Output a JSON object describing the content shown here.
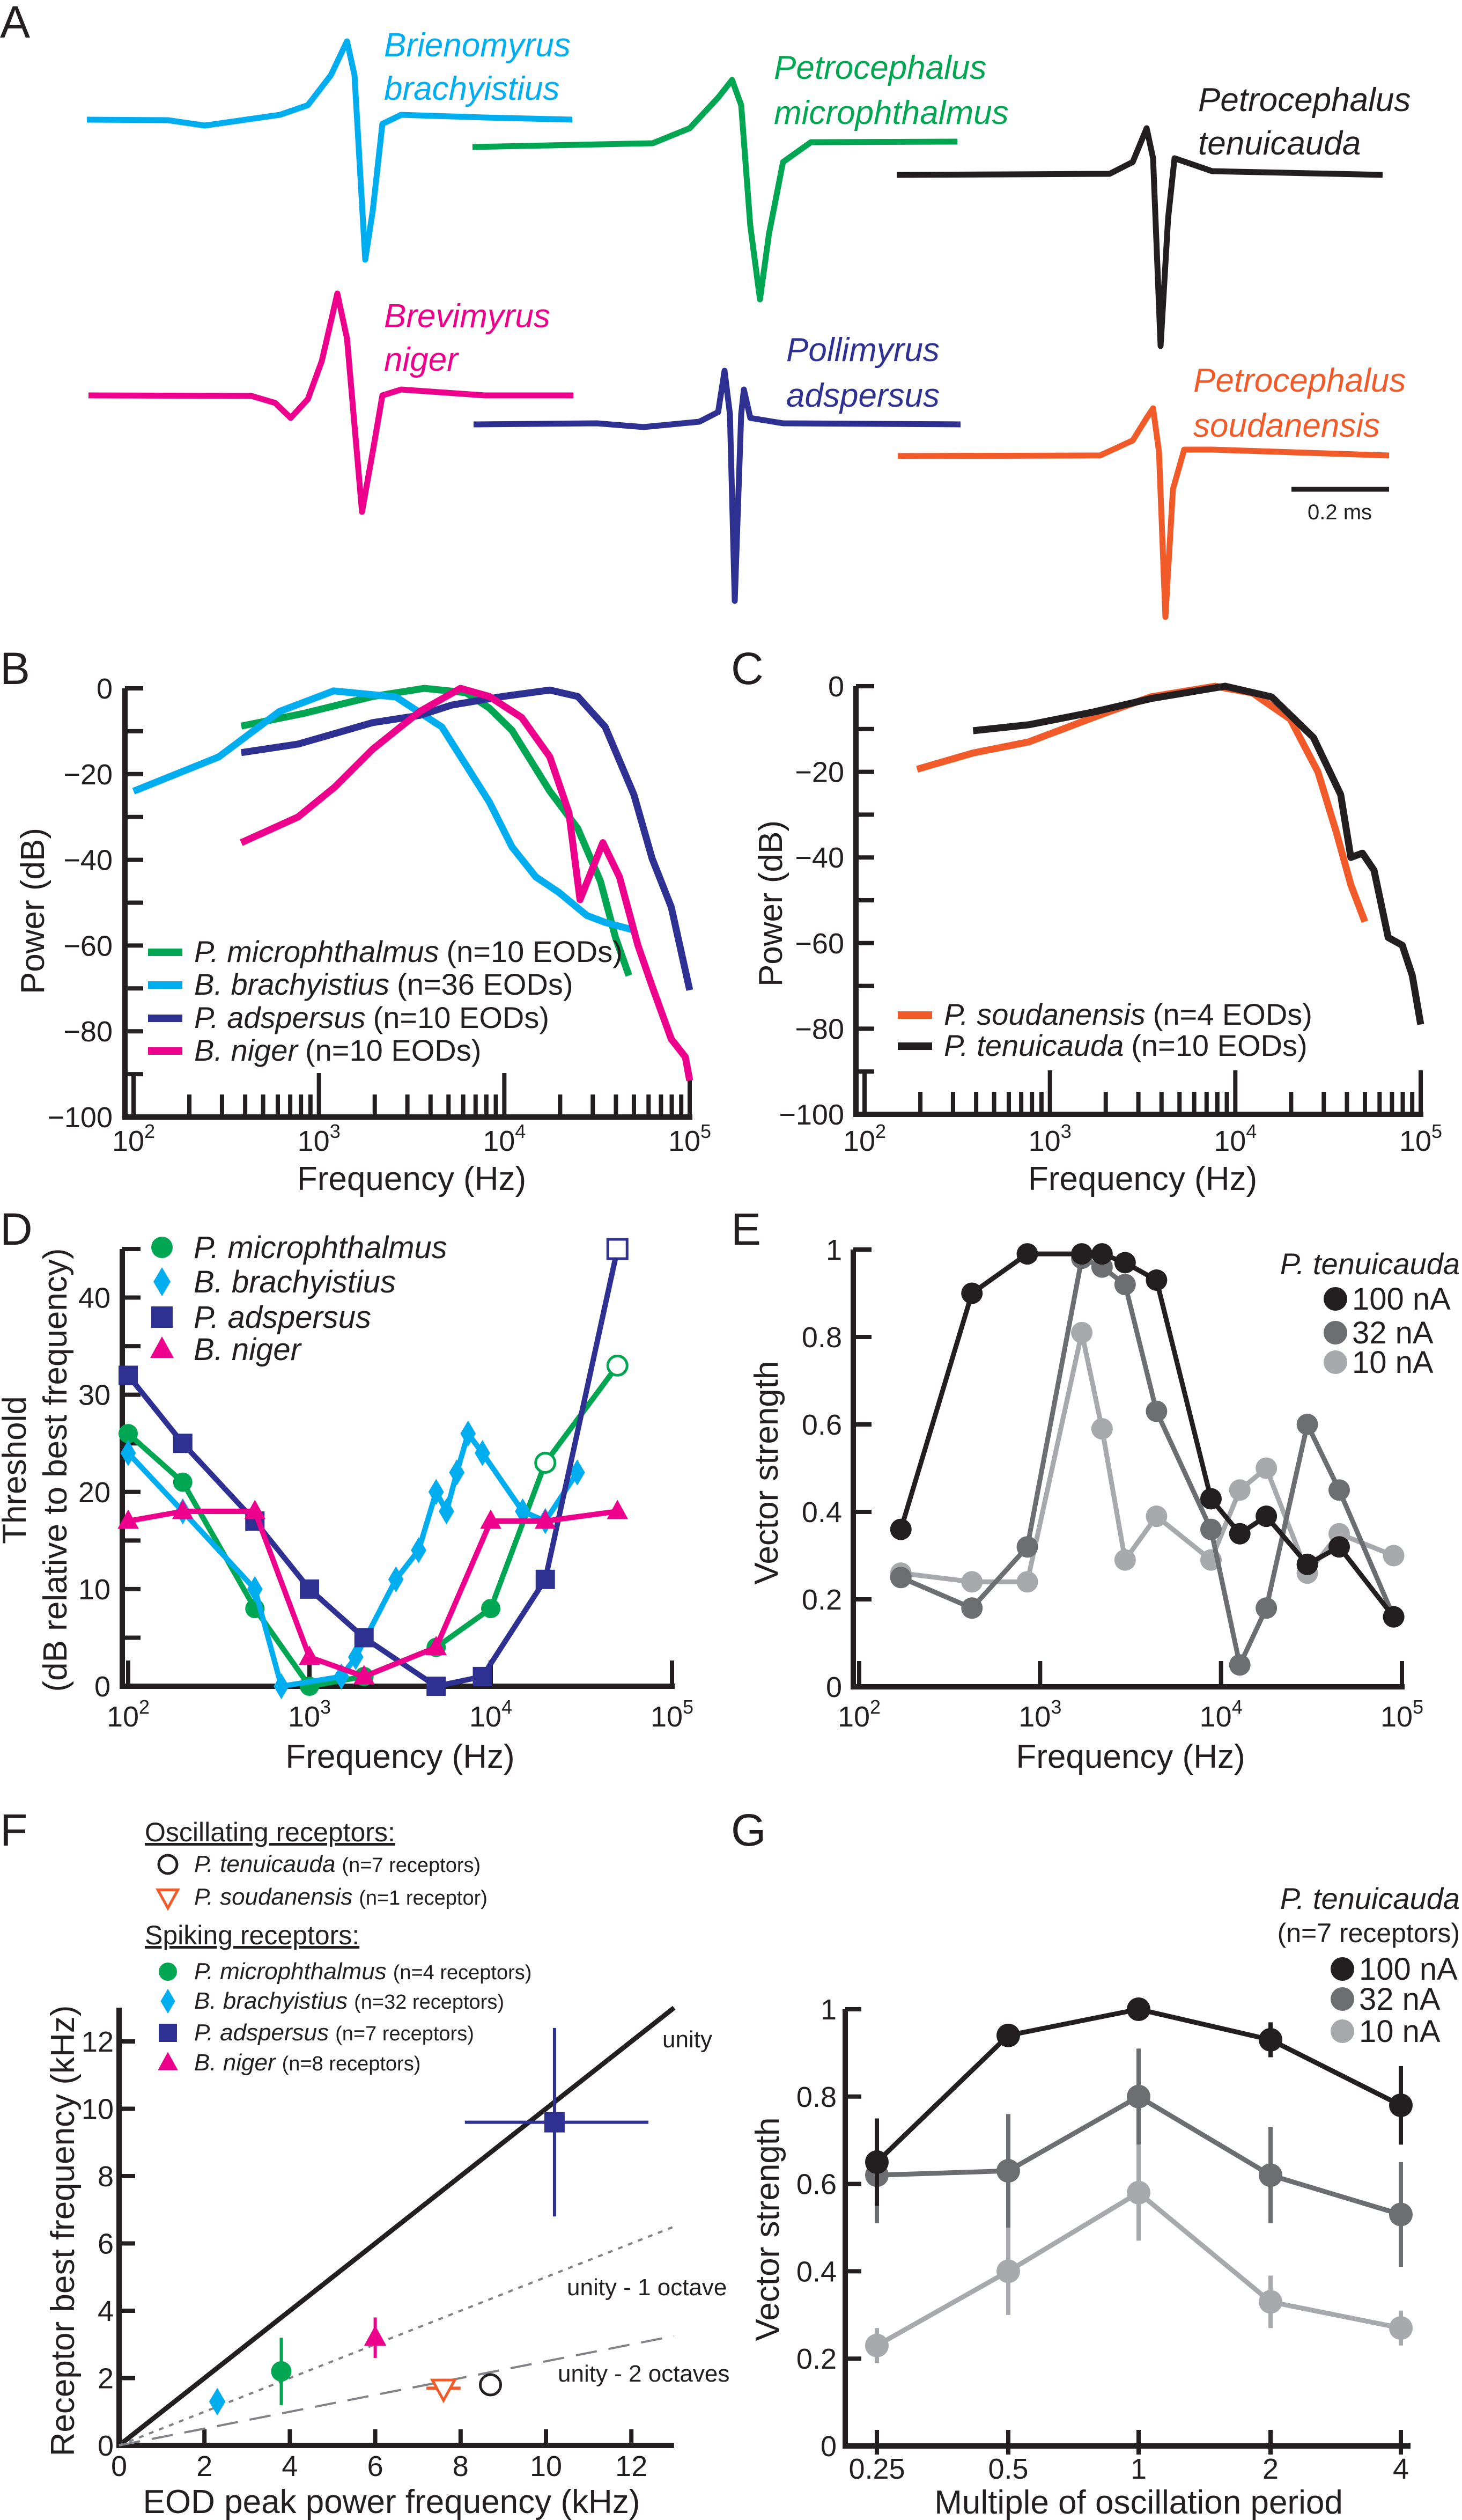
{
  "panel_labels": [
    "A",
    "B",
    "C",
    "D",
    "E",
    "F",
    "G"
  ],
  "panel_a": {
    "waveforms": [
      {
        "genus": "Brienomyrus",
        "species": "brachyistius",
        "color": "#00aeef"
      },
      {
        "genus": "Petrocephalus",
        "species": "microphthalmus",
        "color": "#00a651"
      },
      {
        "genus": "Petrocephalus",
        "species": "tenuicauda",
        "color": "#231f20"
      },
      {
        "genus": "Brevimyrus",
        "species": "niger",
        "color": "#ec008c"
      },
      {
        "genus": "Pollimyrus",
        "species": "adspersus",
        "color": "#2e3192"
      },
      {
        "genus": "Petrocephalus",
        "species": "soudanensis",
        "color": "#f15a29"
      }
    ],
    "scale_bar": "0.2 ms"
  },
  "chart_data": [
    {
      "panel": "B",
      "type": "line",
      "xscale": "log",
      "xlim": [
        100,
        100000
      ],
      "ylim": [
        -100,
        0
      ],
      "xlabel": "Frequency (Hz)",
      "ylabel": "Power (dB)",
      "xtick_labels": [
        {
          "base": "10",
          "exp": "2"
        },
        {
          "base": "10",
          "exp": "3"
        },
        {
          "base": "10",
          "exp": "4"
        },
        {
          "base": "10",
          "exp": "5"
        }
      ],
      "ytick_labels": [
        "0",
        "−20",
        "−40",
        "−60",
        "−80",
        "−100"
      ],
      "legend_position": "bottom-left",
      "series": [
        {
          "name": "P. microphthalmus",
          "note": "(n=10 EODs)",
          "color": "#00a651",
          "x": [
            381,
            817,
            1950,
            3700,
            6200,
            8300,
            11000,
            17600,
            24900,
            33000,
            39700,
            47000
          ],
          "y": [
            -8.8,
            -5.9,
            -1.9,
            0,
            -1,
            -4.6,
            -9.8,
            -24,
            -32.7,
            -45,
            -58,
            -67
          ]
        },
        {
          "name": "B. brachyistius",
          "note": "(n=36 EODs)",
          "color": "#00aeef",
          "x": [
            100,
            288,
            612,
            1200,
            2600,
            4600,
            8300,
            11000,
            14800,
            19700,
            27900,
            35000,
            50000
          ],
          "y": [
            -24,
            -16,
            -5.4,
            -0.6,
            -2,
            -9,
            -26.5,
            -37,
            -44,
            -47.6,
            -53,
            -54.6,
            -56.4
          ]
        },
        {
          "name": "P. adspersus",
          "note": "(n=10 EODs)",
          "color": "#2e3192",
          "x": [
            381,
            772,
            1950,
            3500,
            5200,
            9800,
            17600,
            24900,
            35000,
            50000,
            62700,
            79500,
            100000
          ],
          "y": [
            -15,
            -13,
            -8,
            -6.3,
            -3.9,
            -1.9,
            -0.4,
            -1.9,
            -9,
            -24.8,
            -39.7,
            -51,
            -70.4
          ]
        },
        {
          "name": "B. niger",
          "note": "(n=10 EODs)",
          "color": "#ec008c",
          "x": [
            381,
            772,
            1220,
            1950,
            3500,
            5800,
            8300,
            12400,
            17600,
            22300,
            25600,
            34000,
            41800,
            52600,
            62700,
            79500,
            94700,
            100000
          ],
          "y": [
            -36,
            -30,
            -23,
            -14.2,
            -5.4,
            0,
            -1.9,
            -6.8,
            -16,
            -29,
            -49.3,
            -36,
            -44,
            -60,
            -69.5,
            -81.8,
            -86,
            -91.5
          ]
        }
      ]
    },
    {
      "panel": "C",
      "type": "line",
      "xscale": "log",
      "xlim": [
        100,
        100000
      ],
      "ylim": [
        -100,
        0
      ],
      "xlabel": "Frequency (Hz)",
      "ylabel": "Power (dB)",
      "xtick_labels": [
        {
          "base": "10",
          "exp": "2"
        },
        {
          "base": "10",
          "exp": "3"
        },
        {
          "base": "10",
          "exp": "4"
        },
        {
          "base": "10",
          "exp": "5"
        }
      ],
      "ytick_labels": [
        "0",
        "−20",
        "−40",
        "−60",
        "−80",
        "−100"
      ],
      "legend_position": "bottom-left",
      "series": [
        {
          "name": "P. soudanensis",
          "note": "(n=4 EODs)",
          "color": "#f15a29",
          "x": [
            192,
            385,
            770,
            1950,
            3500,
            7800,
            12400,
            19800,
            27900,
            35000,
            42000,
            50000
          ],
          "y": [
            -19.4,
            -15.6,
            -13,
            -6.4,
            -2.5,
            0,
            -1.6,
            -7.7,
            -20,
            -34,
            -46.4,
            -55
          ]
        },
        {
          "name": "P. tenuicauda",
          "note": "(n=10 EODs)",
          "color": "#231f20",
          "x": [
            385,
            770,
            1730,
            3500,
            8800,
            15700,
            26400,
            37000,
            42000,
            48500,
            56000,
            66800,
            79500,
            90000,
            100000
          ],
          "y": [
            -10.4,
            -9,
            -6,
            -2.9,
            0,
            -2.5,
            -12,
            -25.3,
            -40,
            -39,
            -43,
            -58.7,
            -60.5,
            -67.5,
            -79
          ]
        }
      ]
    },
    {
      "panel": "D",
      "type": "line",
      "xscale": "log",
      "xlim": [
        100,
        100000
      ],
      "ylim": [
        0,
        45
      ],
      "xlabel": "Frequency (Hz)",
      "ylabel": [
        "Threshold",
        "(dB relative to best frequency)"
      ],
      "xtick_labels": [
        {
          "base": "10",
          "exp": "2"
        },
        {
          "base": "10",
          "exp": "3"
        },
        {
          "base": "10",
          "exp": "4"
        },
        {
          "base": "10",
          "exp": "5"
        }
      ],
      "ytick_labels": [
        "0",
        "10",
        "20",
        "30",
        "40"
      ],
      "legend_position": "top-left",
      "series": [
        {
          "name": "P. microphthalmus",
          "color": "#00a651",
          "marker": "circle",
          "x": [
            100,
            200,
            500,
            1000,
            2000,
            5000,
            10000,
            20000,
            50000
          ],
          "y": [
            26,
            21,
            8,
            0,
            1,
            4,
            8,
            23,
            33
          ],
          "open_points": [
            7,
            8
          ]
        },
        {
          "name": "B. brachyistius",
          "color": "#00aeef",
          "marker": "diamond",
          "x": [
            100,
            200,
            500,
            700,
            1500,
            1800,
            3000,
            4000,
            5000,
            5700,
            6500,
            7500,
            9000,
            15000,
            20000,
            30000
          ],
          "y": [
            24,
            18,
            10,
            0,
            1,
            3,
            11,
            14,
            20,
            18,
            22,
            26,
            24,
            18,
            17,
            22
          ],
          "open_points": []
        },
        {
          "name": "P. adspersus",
          "color": "#2e3192",
          "marker": "square",
          "x": [
            100,
            200,
            500,
            1000,
            2000,
            5000,
            9000,
            20000,
            50000
          ],
          "y": [
            32,
            25,
            17,
            10,
            5,
            0,
            1,
            11,
            45
          ],
          "open_points": [
            8
          ]
        },
        {
          "name": "B. niger",
          "color": "#ec008c",
          "marker": "triangle",
          "x": [
            100,
            200,
            500,
            1000,
            2000,
            5000,
            10000,
            20000,
            50000
          ],
          "y": [
            17,
            18,
            18,
            3,
            1,
            4,
            17,
            17,
            18
          ],
          "open_points": []
        }
      ]
    },
    {
      "panel": "E",
      "type": "line",
      "xscale": "log",
      "xlim": [
        100,
        100000
      ],
      "ylim": [
        0,
        1
      ],
      "xlabel": "Frequency (Hz)",
      "ylabel": "Vector strength",
      "xtick_labels": [
        {
          "base": "10",
          "exp": "2"
        },
        {
          "base": "10",
          "exp": "3"
        },
        {
          "base": "10",
          "exp": "4"
        },
        {
          "base": "10",
          "exp": "5"
        }
      ],
      "ytick_labels": [
        "0",
        "0.2",
        "0.4",
        "0.6",
        "0.8",
        "1"
      ],
      "legend_title": "P. tenuicauda",
      "legend_position": "top-right",
      "series": [
        {
          "name": "100 nA",
          "color": "#231f20",
          "x": [
            170,
            420,
            850,
            1700,
            2200,
            2950,
            4400,
            8800,
            12700,
            17800,
            30000,
            45000,
            90000
          ],
          "y": [
            0.36,
            0.9,
            0.99,
            0.99,
            0.99,
            0.97,
            0.93,
            0.43,
            0.35,
            0.39,
            0.28,
            0.32,
            0.16
          ]
        },
        {
          "name": "32 nA",
          "color": "#6d6e71",
          "x": [
            170,
            420,
            850,
            1700,
            2200,
            2950,
            4400,
            8800,
            12700,
            17800,
            30000,
            45000,
            90000
          ],
          "y": [
            0.25,
            0.18,
            0.32,
            0.98,
            0.96,
            0.92,
            0.63,
            0.36,
            0.05,
            0.18,
            0.6,
            0.45,
            0.16
          ]
        },
        {
          "name": "10 nA",
          "color": "#a7a9ac",
          "x": [
            170,
            420,
            850,
            1700,
            2200,
            2950,
            4400,
            8800,
            12700,
            17800,
            30000,
            45000,
            90000
          ],
          "y": [
            0.26,
            0.24,
            0.24,
            0.81,
            0.59,
            0.29,
            0.39,
            0.29,
            0.45,
            0.5,
            0.26,
            0.35,
            0.3
          ]
        }
      ]
    },
    {
      "panel": "F",
      "type": "scatter",
      "xlim": [
        0,
        13
      ],
      "ylim": [
        0,
        13
      ],
      "xlabel": "EOD peak power frequency (kHz)",
      "ylabel": "Receptor best frequency (kHz)",
      "xtick_labels": [
        "0",
        "2",
        "4",
        "6",
        "8",
        "10",
        "12"
      ],
      "ytick_labels": [
        "0",
        "2",
        "4",
        "6",
        "8",
        "10",
        "12"
      ],
      "legend_position": "top-left",
      "groups": [
        {
          "title": "Oscillating receptors:",
          "points": [
            {
              "name": "P. tenuicauda",
              "note": "(n=7 receptors)",
              "color": "#231f20",
              "marker": "circle",
              "open": true,
              "x": 8.7,
              "y": 1.8
            },
            {
              "name": "P. soudanensis",
              "note": "(n=1 receptor)",
              "color": "#f15a29",
              "marker": "triangle-down",
              "open": true,
              "x": 7.6,
              "y": 1.7,
              "xerr": [
                7.2,
                8.0
              ]
            }
          ]
        },
        {
          "title": "Spiking receptors:",
          "points": [
            {
              "name": "P. microphthalmus",
              "note": "(n=4 receptors)",
              "color": "#00a651",
              "marker": "circle",
              "open": false,
              "x": 3.8,
              "y": 2.2,
              "yerr": [
                1.2,
                3.2
              ]
            },
            {
              "name": "B. brachyistius",
              "note": "(n=32 receptors)",
              "color": "#00aeef",
              "marker": "diamond",
              "open": false,
              "x": 2.3,
              "y": 1.3
            },
            {
              "name": "P. adspersus",
              "note": "(n=7 receptors)",
              "color": "#2e3192",
              "marker": "square",
              "open": false,
              "x": 10.2,
              "y": 9.6,
              "xerr": [
                8.1,
                12.4
              ],
              "yerr": [
                6.8,
                12.4
              ]
            },
            {
              "name": "B. niger",
              "note": "(n=8 receptors)",
              "color": "#ec008c",
              "marker": "triangle",
              "open": false,
              "x": 6.0,
              "y": 3.2,
              "yerr": [
                2.6,
                3.8
              ]
            }
          ]
        }
      ],
      "reference_lines": [
        {
          "label": "unity",
          "slope": 1,
          "style": "solid",
          "color": "#231f20"
        },
        {
          "label": "unity - 1 octave",
          "slope": 0.5,
          "style": "dotted",
          "color": "#808285"
        },
        {
          "label": "unity - 2 octaves",
          "slope": 0.25,
          "style": "dashed",
          "color": "#808285"
        }
      ]
    },
    {
      "panel": "G",
      "type": "line",
      "ylim": [
        0,
        1
      ],
      "xlabel": "Multiple of oscillation period",
      "ylabel": "Vector strength",
      "categories": [
        "0.25",
        "0.5",
        "1",
        "2",
        "4"
      ],
      "ytick_labels": [
        "0",
        "0.2",
        "0.4",
        "0.6",
        "0.8",
        "1"
      ],
      "legend_title": "P. tenuicauda",
      "legend_subtitle": "(n=7 receptors)",
      "legend_position": "top-right",
      "series": [
        {
          "name": "100 nA",
          "color": "#231f20",
          "values": [
            0.65,
            0.94,
            1.0,
            0.93,
            0.78
          ],
          "error": [
            0.1,
            0.0,
            0.0,
            0.04,
            0.09
          ]
        },
        {
          "name": "32 nA",
          "color": "#6d6e71",
          "values": [
            0.62,
            0.63,
            0.8,
            0.62,
            0.53
          ],
          "error": [
            0.11,
            0.13,
            0.11,
            0.11,
            0.12
          ]
        },
        {
          "name": "10 nA",
          "color": "#a7a9ac",
          "values": [
            0.23,
            0.4,
            0.58,
            0.33,
            0.27
          ],
          "error": [
            0.04,
            0.1,
            0.11,
            0.06,
            0.04
          ]
        }
      ]
    }
  ]
}
